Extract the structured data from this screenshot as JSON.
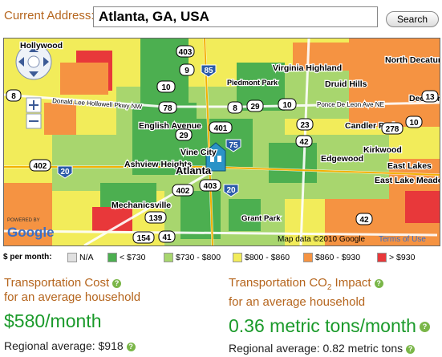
{
  "address": {
    "label": "Current Address:",
    "value": "Atlanta, GA, USA",
    "search_label": "Search"
  },
  "map": {
    "place_labels": [
      "Hollywood",
      "Virginia Highland",
      "North Decatur",
      "Druid Hills",
      "Decatur",
      "Candler Park",
      "Kirkwood",
      "Edgewood",
      "East Lakes",
      "East Lake Meadows",
      "English Avenue",
      "Vine City",
      "Ashview Heights",
      "Atlanta",
      "Mechanicsville",
      "Grant Park",
      "Piedmont Park",
      "Donald Lee Hollowell Pkwy NW",
      "Ponce De Leon Ave NE"
    ],
    "route_shields": [
      "403",
      "9",
      "85",
      "8",
      "10",
      "29",
      "78",
      "8",
      "29",
      "10",
      "13",
      "401",
      "23",
      "278",
      "10",
      "42",
      "75",
      "402",
      "20",
      "403",
      "402",
      "20",
      "139",
      "42",
      "154",
      "41"
    ],
    "powered_by": "POWERED BY",
    "google": "Google",
    "copyright": "Map data ©2010 Google",
    "terms": "Terms of Use"
  },
  "legend": {
    "per_month": "$ per month:",
    "items": [
      {
        "label": "N/A",
        "color": "#e0e0e0"
      },
      {
        "label": "< $730",
        "color": "#4caf50"
      },
      {
        "label": "$730 - $800",
        "color": "#a8d66e"
      },
      {
        "label": "$800 - $860",
        "color": "#f2ec5a"
      },
      {
        "label": "$860 - $930",
        "color": "#f59342"
      },
      {
        "label": "> $930",
        "color": "#e8383a"
      }
    ]
  },
  "cost": {
    "title": "Transportation Cost",
    "sub": "for an average household",
    "value": "$580/month",
    "avg": "Regional average: $918"
  },
  "co2": {
    "title_pre": "Transportation CO",
    "title_sub": "2",
    "title_post": " Impact",
    "sub": "for an average household",
    "value": "0.36 metric tons/month",
    "avg": "Regional average: 0.82 metric tons"
  },
  "colors": {
    "accent": "#b5651d",
    "value_green": "#1a9a2a",
    "info_green": "#7ab648"
  }
}
